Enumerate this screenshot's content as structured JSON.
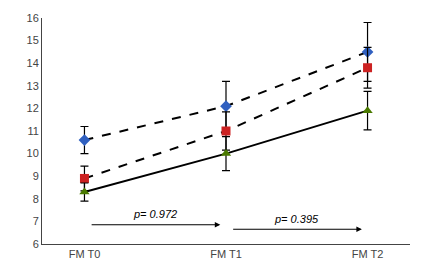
{
  "chart_data": {
    "type": "line",
    "categories": [
      "FM T0",
      "FM T1",
      "FM T2"
    ],
    "series": [
      {
        "values": [
          10.6,
          12.1,
          14.5
        ],
        "errors": [
          0.6,
          1.1,
          1.3
        ],
        "color": "#3060c0",
        "marker": "diamond",
        "line_style": "dashed"
      },
      {
        "values": [
          8.9,
          11.0,
          13.8
        ],
        "errors": [
          0.55,
          0.85,
          0.9
        ],
        "color": "#cc2222",
        "marker": "square",
        "line_style": "dashed"
      },
      {
        "values": [
          8.3,
          10.0,
          11.9
        ],
        "errors": [
          0.4,
          0.75,
          0.85
        ],
        "color": "#4a7a00",
        "marker": "triangle-up",
        "line_style": "solid"
      }
    ],
    "ylim": [
      6,
      16
    ],
    "yticks": [
      6,
      7,
      8,
      9,
      10,
      11,
      12,
      13,
      14,
      15,
      16
    ],
    "grid": false,
    "annotations": [
      {
        "text": "p= 0.972",
        "categories": [
          "FM T0",
          "FM T1"
        ]
      },
      {
        "text": "p= 0.395",
        "categories": [
          "FM T1",
          "FM T2"
        ]
      }
    ]
  }
}
